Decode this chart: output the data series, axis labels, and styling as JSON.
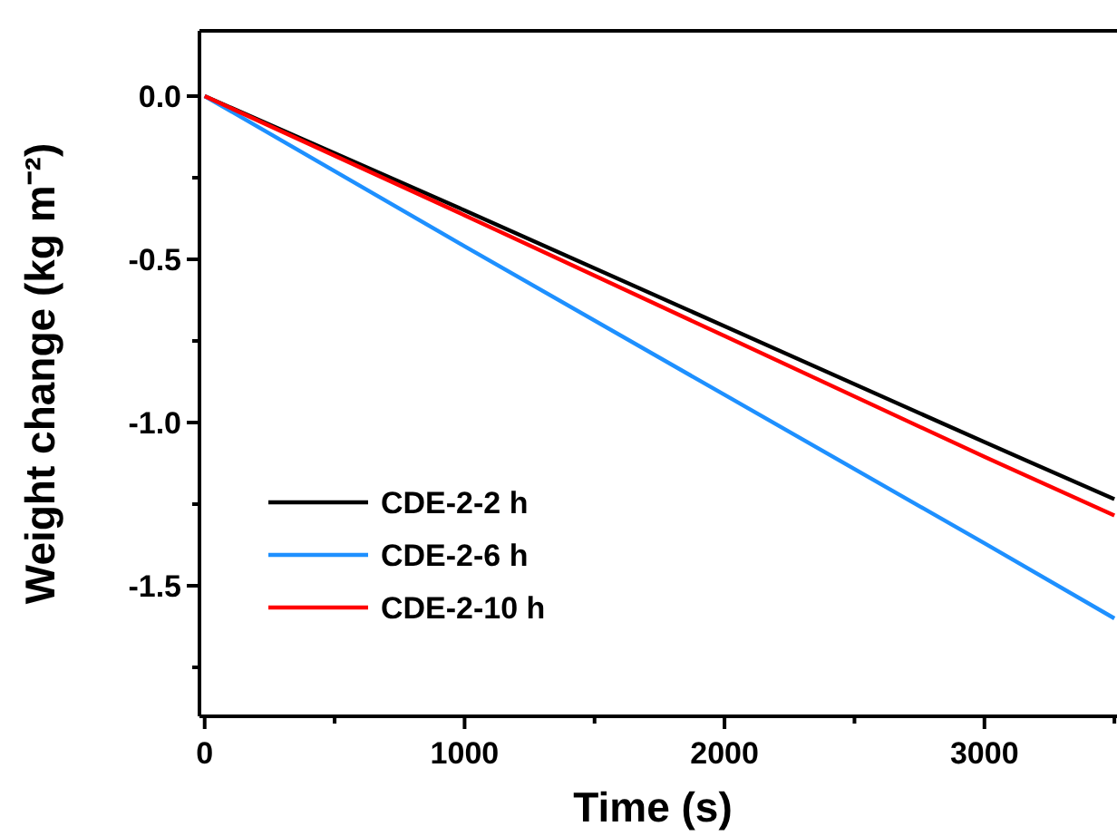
{
  "chart_data": {
    "type": "line",
    "xlabel": "Time (s)",
    "ylabel": "Weight change (kg m⁻²)",
    "xlim": [
      -20,
      3510
    ],
    "ylim": [
      -1.9,
      0.2
    ],
    "xticks": [
      0,
      {
        "value": 500,
        "label": null
      },
      1000,
      {
        "value": 1500,
        "label": null
      },
      2000,
      {
        "value": 2500,
        "label": null
      },
      3000,
      {
        "value": 3500,
        "label": null
      }
    ],
    "yticks": [
      {
        "value": 0,
        "label": "0.0"
      },
      {
        "value": -0.25,
        "label": null
      },
      {
        "value": -0.5,
        "label": "-0.5"
      },
      {
        "value": -0.75,
        "label": null
      },
      {
        "value": -1,
        "label": "-1.0"
      },
      {
        "value": -1.25,
        "label": null
      },
      {
        "value": -1.5,
        "label": "-1.5"
      },
      {
        "value": -1.75,
        "label": null
      }
    ],
    "x": [
      0,
      1000,
      2000,
      3000,
      3500
    ],
    "series": [
      {
        "name": "CDE-2-2 h",
        "color": "#000000",
        "values": [
          0,
          -0.35,
          -0.705,
          -1.06,
          -1.235
        ]
      },
      {
        "name": "CDE-2-6 h",
        "color": "#1e90ff",
        "values": [
          0,
          -0.46,
          -0.915,
          -1.37,
          -1.6
        ]
      },
      {
        "name": "CDE-2-10 h",
        "color": "#ff0000",
        "values": [
          0,
          -0.365,
          -0.735,
          -1.105,
          -1.285
        ]
      }
    ],
    "legend": "bottom left",
    "grid": false,
    "marker": "none",
    "line_style": "solid"
  }
}
